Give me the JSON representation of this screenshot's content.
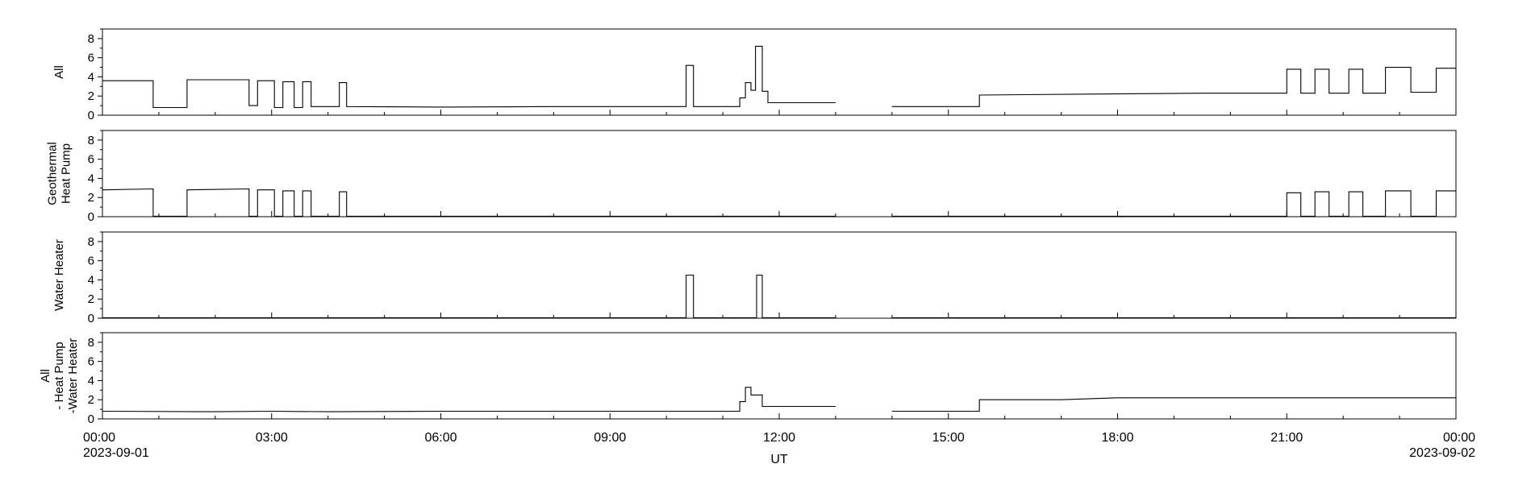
{
  "chart_data": {
    "type": "line",
    "x_axis": {
      "label": "UT",
      "range": [
        "00:00",
        "24:00"
      ],
      "ticks": [
        "00:00",
        "03:00",
        "06:00",
        "09:00",
        "12:00",
        "15:00",
        "18:00",
        "21:00",
        "00:00"
      ],
      "tick_dates": [
        "2023-09-01",
        "",
        "",
        "",
        "",
        "",
        "",
        "",
        "2023-09-02"
      ]
    },
    "y_axis": {
      "range": [
        0,
        9
      ],
      "ticks": [
        "0",
        "2",
        "4",
        "6",
        "8"
      ]
    },
    "data_gap": [
      "13:00",
      "14:00"
    ],
    "panels": [
      {
        "label_lines": [
          "All"
        ],
        "series": [
          [
            0.0,
            3.6
          ],
          [
            0.9,
            3.6
          ],
          [
            0.9,
            0.8
          ],
          [
            1.5,
            0.8
          ],
          [
            1.5,
            3.7
          ],
          [
            2.6,
            3.7
          ],
          [
            2.6,
            1.0
          ],
          [
            2.75,
            1.0
          ],
          [
            2.75,
            3.6
          ],
          [
            3.05,
            3.6
          ],
          [
            3.05,
            0.8
          ],
          [
            3.2,
            0.8
          ],
          [
            3.2,
            3.5
          ],
          [
            3.4,
            3.5
          ],
          [
            3.4,
            0.8
          ],
          [
            3.55,
            0.8
          ],
          [
            3.55,
            3.5
          ],
          [
            3.7,
            3.5
          ],
          [
            3.7,
            0.9
          ],
          [
            4.2,
            0.9
          ],
          [
            4.2,
            3.4
          ],
          [
            4.33,
            3.4
          ],
          [
            4.33,
            0.9
          ],
          [
            6.0,
            0.85
          ],
          [
            8.0,
            0.9
          ],
          [
            10.35,
            0.9
          ],
          [
            10.35,
            5.2
          ],
          [
            10.48,
            5.2
          ],
          [
            10.48,
            0.9
          ],
          [
            11.3,
            0.9
          ],
          [
            11.3,
            1.8
          ],
          [
            11.4,
            1.8
          ],
          [
            11.4,
            3.4
          ],
          [
            11.5,
            3.4
          ],
          [
            11.5,
            2.6
          ],
          [
            11.58,
            2.6
          ],
          [
            11.58,
            7.2
          ],
          [
            11.7,
            7.2
          ],
          [
            11.7,
            2.5
          ],
          [
            11.8,
            2.5
          ],
          [
            11.8,
            1.3
          ],
          [
            13.0,
            1.3
          ]
        ],
        "series_after_gap": [
          [
            14.0,
            0.9
          ],
          [
            15.55,
            0.9
          ],
          [
            15.55,
            2.1
          ],
          [
            17.5,
            2.2
          ],
          [
            19.5,
            2.3
          ],
          [
            21.0,
            2.3
          ],
          [
            21.0,
            4.8
          ],
          [
            21.25,
            4.8
          ],
          [
            21.25,
            2.3
          ],
          [
            21.5,
            2.3
          ],
          [
            21.5,
            4.8
          ],
          [
            21.75,
            4.8
          ],
          [
            21.75,
            2.3
          ],
          [
            22.1,
            2.3
          ],
          [
            22.1,
            4.8
          ],
          [
            22.35,
            4.8
          ],
          [
            22.35,
            2.3
          ],
          [
            22.75,
            2.3
          ],
          [
            22.75,
            5.0
          ],
          [
            23.2,
            5.0
          ],
          [
            23.2,
            2.4
          ],
          [
            23.65,
            2.4
          ],
          [
            23.65,
            4.9
          ],
          [
            24.0,
            4.9
          ]
        ]
      },
      {
        "label_lines": [
          "Geothermal",
          "Heat Pump"
        ],
        "series": [
          [
            0.0,
            2.8
          ],
          [
            0.9,
            2.9
          ],
          [
            0.9,
            0.05
          ],
          [
            1.5,
            0.05
          ],
          [
            1.5,
            2.8
          ],
          [
            2.6,
            2.9
          ],
          [
            2.6,
            0.05
          ],
          [
            2.75,
            0.05
          ],
          [
            2.75,
            2.8
          ],
          [
            3.05,
            2.8
          ],
          [
            3.05,
            0.05
          ],
          [
            3.2,
            0.05
          ],
          [
            3.2,
            2.7
          ],
          [
            3.4,
            2.7
          ],
          [
            3.4,
            0.05
          ],
          [
            3.55,
            0.05
          ],
          [
            3.55,
            2.7
          ],
          [
            3.7,
            2.7
          ],
          [
            3.7,
            0.05
          ],
          [
            4.2,
            0.05
          ],
          [
            4.2,
            2.6
          ],
          [
            4.33,
            2.6
          ],
          [
            4.33,
            0.05
          ],
          [
            13.0,
            0.05
          ]
        ],
        "series_after_gap": [
          [
            14.0,
            0.05
          ],
          [
            21.0,
            0.05
          ],
          [
            21.0,
            2.5
          ],
          [
            21.25,
            2.5
          ],
          [
            21.25,
            0.05
          ],
          [
            21.5,
            0.05
          ],
          [
            21.5,
            2.6
          ],
          [
            21.75,
            2.6
          ],
          [
            21.75,
            0.05
          ],
          [
            22.1,
            0.05
          ],
          [
            22.1,
            2.6
          ],
          [
            22.35,
            2.6
          ],
          [
            22.35,
            0.05
          ],
          [
            22.75,
            0.05
          ],
          [
            22.75,
            2.7
          ],
          [
            23.2,
            2.7
          ],
          [
            23.2,
            0.05
          ],
          [
            23.65,
            0.05
          ],
          [
            23.65,
            2.7
          ],
          [
            24.0,
            2.7
          ]
        ]
      },
      {
        "label_lines": [
          "Water Heater"
        ],
        "series": [
          [
            0.0,
            0.05
          ],
          [
            10.35,
            0.05
          ],
          [
            10.35,
            4.5
          ],
          [
            10.48,
            4.5
          ],
          [
            10.48,
            0.05
          ],
          [
            11.6,
            0.05
          ],
          [
            11.6,
            4.5
          ],
          [
            11.7,
            4.5
          ],
          [
            11.7,
            0.05
          ],
          [
            13.0,
            0.05
          ]
        ],
        "series_after_gap": [
          [
            14.0,
            0.05
          ],
          [
            24.0,
            0.05
          ]
        ]
      },
      {
        "label_lines": [
          "All",
          "- Heat Pump",
          "-Water Heater"
        ],
        "series": [
          [
            0.0,
            0.8
          ],
          [
            2.0,
            0.75
          ],
          [
            3.0,
            0.8
          ],
          [
            4.0,
            0.75
          ],
          [
            6.0,
            0.8
          ],
          [
            8.0,
            0.8
          ],
          [
            10.0,
            0.8
          ],
          [
            11.3,
            0.8
          ],
          [
            11.3,
            1.8
          ],
          [
            11.4,
            1.8
          ],
          [
            11.4,
            3.3
          ],
          [
            11.5,
            3.3
          ],
          [
            11.5,
            2.5
          ],
          [
            11.7,
            2.5
          ],
          [
            11.7,
            1.3
          ],
          [
            13.0,
            1.3
          ]
        ],
        "series_after_gap": [
          [
            14.0,
            0.8
          ],
          [
            15.55,
            0.8
          ],
          [
            15.55,
            2.0
          ],
          [
            17.0,
            2.0
          ],
          [
            18.0,
            2.2
          ],
          [
            20.0,
            2.2
          ],
          [
            22.0,
            2.2
          ],
          [
            24.0,
            2.2
          ]
        ]
      }
    ]
  }
}
